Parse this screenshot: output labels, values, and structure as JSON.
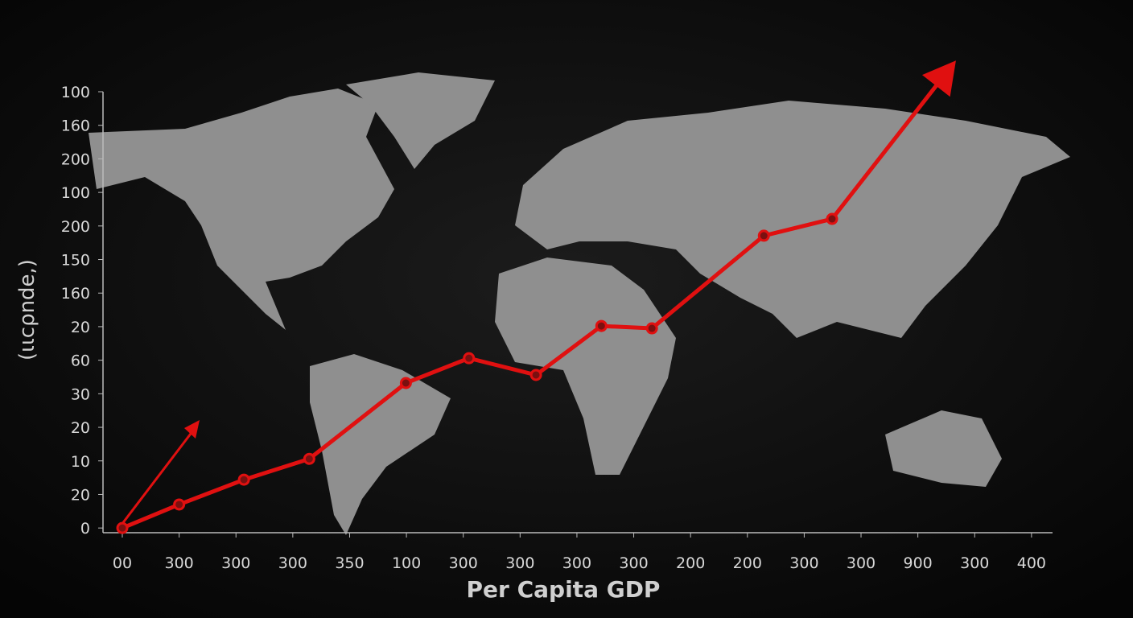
{
  "chart_data": {
    "type": "line",
    "x_label": "Per Capita GDP",
    "y_label": "(ιιcρnde,)",
    "xlim": [
      -0.34,
      16.37
    ],
    "ylim": [
      -0.14,
      13
    ],
    "xticks": [
      {
        "value": 0,
        "label": "00"
      },
      {
        "value": 1,
        "label": "300"
      },
      {
        "value": 2,
        "label": "300"
      },
      {
        "value": 3,
        "label": "300"
      },
      {
        "value": 4,
        "label": "350"
      },
      {
        "value": 5,
        "label": "100"
      },
      {
        "value": 6,
        "label": "300"
      },
      {
        "value": 7,
        "label": "300"
      },
      {
        "value": 8,
        "label": "300"
      },
      {
        "value": 9,
        "label": "300"
      },
      {
        "value": 10,
        "label": "200"
      },
      {
        "value": 11,
        "label": "200"
      },
      {
        "value": 12,
        "label": "300"
      },
      {
        "value": 13,
        "label": "300"
      },
      {
        "value": 14,
        "label": "900"
      },
      {
        "value": 15,
        "label": "300"
      },
      {
        "value": 16,
        "label": "400"
      }
    ],
    "yticks": [
      0,
      {
        "value": 1,
        "label": "20"
      },
      {
        "value": 2,
        "label": "10"
      },
      {
        "value": 3,
        "label": "20"
      },
      {
        "value": 4,
        "label": "30"
      },
      {
        "value": 5,
        "label": "60"
      },
      {
        "value": 6,
        "label": "20"
      },
      {
        "value": 7,
        "label": "160"
      },
      {
        "value": 8,
        "label": "150"
      },
      {
        "value": 9,
        "label": "200"
      },
      {
        "value": 10,
        "label": "100"
      },
      {
        "value": 11,
        "label": "200"
      },
      {
        "value": 12,
        "label": "160"
      },
      {
        "value": 13,
        "label": "100"
      }
    ],
    "x": [
      0,
      1,
      2.14,
      3.29,
      4.99,
      6.1,
      7.28,
      8.43,
      9.32,
      11.29,
      12.49,
      14.67
    ],
    "series": [
      {
        "color": "#e01010",
        "values": [
          0,
          0.7,
          1.44,
          2.06,
          4.32,
          5.06,
          4.56,
          6.02,
          5.95,
          8.71,
          9.21,
          13.93
        ]
      }
    ],
    "arrow_end": true
  }
}
